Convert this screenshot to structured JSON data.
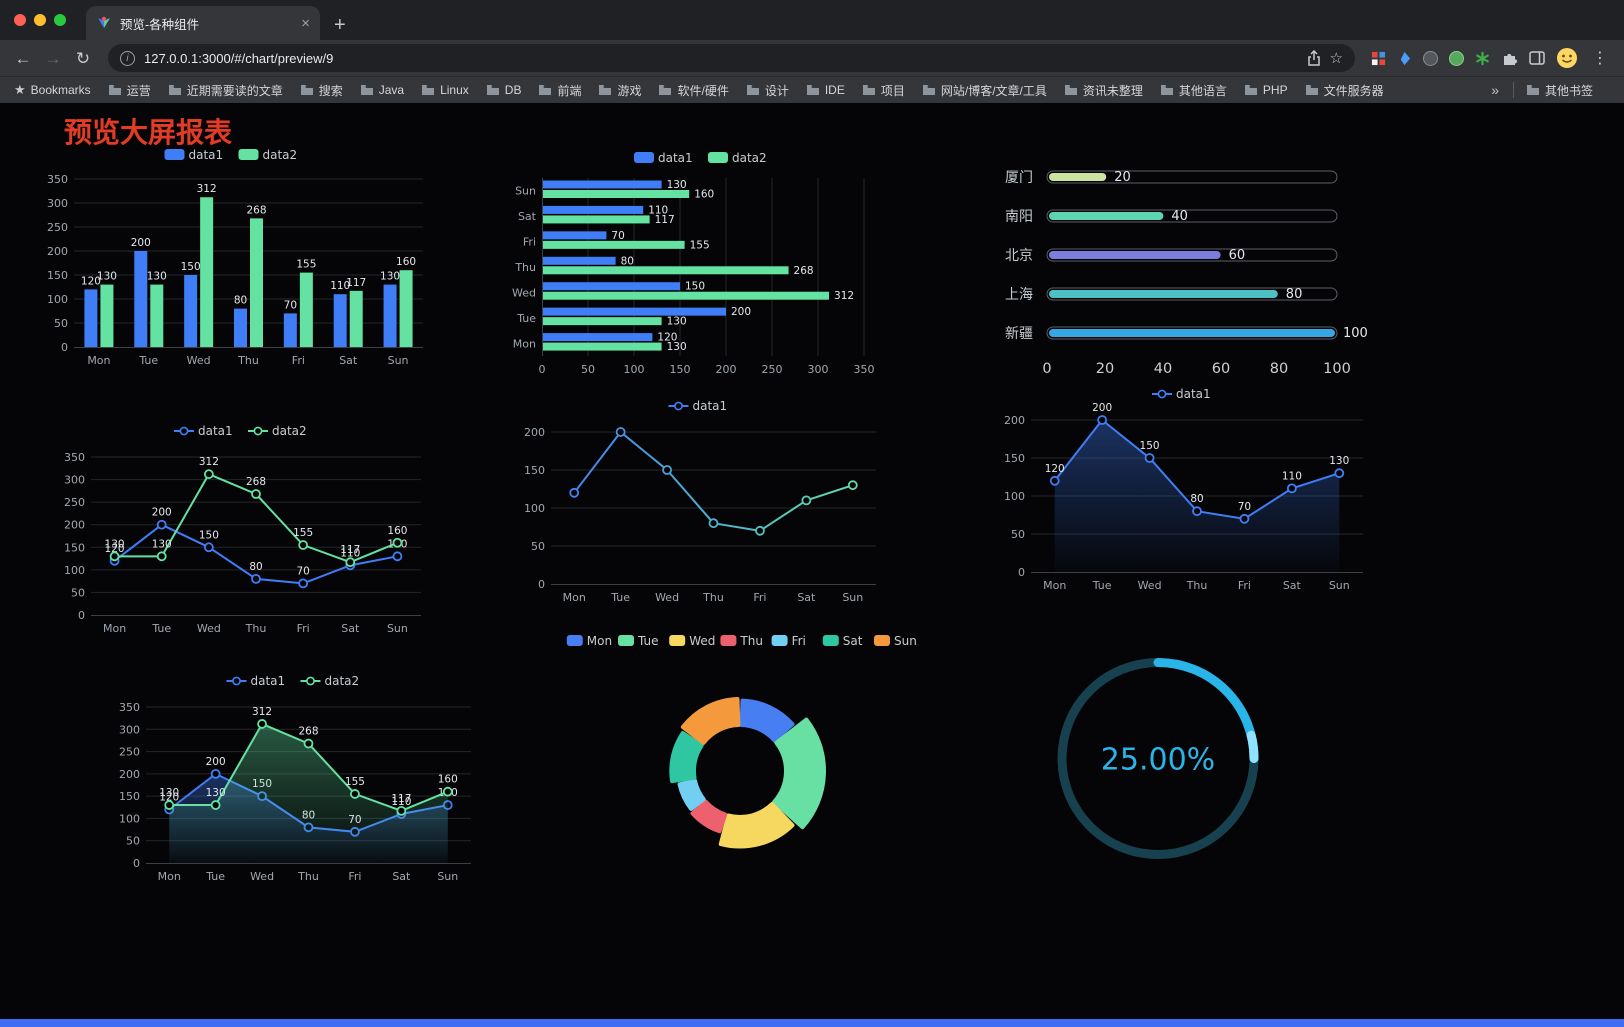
{
  "browser": {
    "tab": {
      "title": "预览-各种组件",
      "close": "×"
    },
    "new_tab": "+",
    "url": "127.0.0.1:3000/#/chart/preview/9",
    "bookmarks_bar": {
      "root_label": "Bookmarks",
      "folders": [
        "运营",
        "近期需要读的文章",
        "搜索",
        "Java",
        "Linux",
        "DB",
        "前端",
        "游戏",
        "软件/硬件",
        "设计",
        "IDE",
        "项目",
        "网站/博客/文章/工具",
        "资讯未整理",
        "其他语言",
        "PHP",
        "文件服务器"
      ],
      "overflow": "»",
      "other": "其他书签"
    }
  },
  "page": {
    "title": "预览大屏报表",
    "title_color": "#e23c26",
    "background": "#050507",
    "bottom_bar_color": "#3f6df4"
  },
  "colors": {
    "data1": "#3f7ef7",
    "data2": "#63e2a2",
    "grid": "#23262b",
    "axis_line": "#3c4147",
    "axis_label": "#a2a8b0",
    "value_label": "#e4e7eb"
  },
  "chart_data": [
    {
      "type": "bar",
      "categories": [
        "Mon",
        "Tue",
        "Wed",
        "Thu",
        "Fri",
        "Sat",
        "Sun"
      ],
      "series": [
        {
          "name": "data1",
          "color": "#3f7ef7",
          "values": [
            120,
            200,
            150,
            80,
            70,
            110,
            130
          ]
        },
        {
          "name": "data2",
          "color": "#63e2a2",
          "values": [
            130,
            130,
            312,
            268,
            155,
            117,
            160
          ]
        }
      ],
      "ylim": [
        0,
        350
      ],
      "yticks": [
        0,
        50,
        100,
        150,
        200,
        250,
        300,
        350
      ],
      "legend_position": "top",
      "grid": true,
      "labels": true
    },
    {
      "type": "hbar",
      "categories": [
        "Sun",
        "Sat",
        "Fri",
        "Thu",
        "Wed",
        "Tue",
        "Mon"
      ],
      "series": [
        {
          "name": "data1",
          "color": "#3f7ef7",
          "values": [
            130,
            110,
            70,
            80,
            150,
            200,
            120
          ]
        },
        {
          "name": "data2",
          "color": "#63e2a2",
          "values": [
            160,
            117,
            155,
            268,
            312,
            130,
            130
          ]
        }
      ],
      "xlim": [
        0,
        350
      ],
      "xticks": [
        0,
        50,
        100,
        150,
        200,
        250,
        300,
        350
      ],
      "legend_position": "top",
      "grid": true,
      "labels": true
    },
    {
      "type": "capsule",
      "items": [
        {
          "label": "厦门",
          "value": 20,
          "color": "#cbe59e"
        },
        {
          "label": "南阳",
          "value": 40,
          "color": "#5bd6ae"
        },
        {
          "label": "北京",
          "value": 60,
          "color": "#7b7edf"
        },
        {
          "label": "上海",
          "value": 80,
          "color": "#4cc2c5"
        },
        {
          "label": "新疆",
          "value": 100,
          "color": "#36a7e2"
        }
      ],
      "max": 100,
      "xticks": [
        0,
        20,
        40,
        60,
        80,
        100
      ]
    },
    {
      "type": "line",
      "categories": [
        "Mon",
        "Tue",
        "Wed",
        "Thu",
        "Fri",
        "Sat",
        "Sun"
      ],
      "series": [
        {
          "name": "data1",
          "color": "#3f7ef7",
          "values": [
            120,
            200,
            150,
            80,
            70,
            110,
            130
          ],
          "labels": true
        },
        {
          "name": "data2",
          "color": "#63e2a2",
          "values": [
            130,
            130,
            312,
            268,
            155,
            117,
            160
          ],
          "labels": true
        }
      ],
      "ylim": [
        0,
        350
      ],
      "yticks": [
        0,
        50,
        100,
        150,
        200,
        250,
        300,
        350
      ],
      "legend_position": "top"
    },
    {
      "type": "line",
      "categories": [
        "Mon",
        "Tue",
        "Wed",
        "Thu",
        "Fri",
        "Sat",
        "Sun"
      ],
      "series": [
        {
          "name": "data1",
          "color": "#3f7ef7",
          "color2": "#63e2a2",
          "gradient": true,
          "values": [
            120,
            200,
            150,
            80,
            70,
            110,
            130
          ],
          "labels": false
        }
      ],
      "ylim": [
        0,
        200
      ],
      "yticks": [
        0,
        50,
        100,
        150,
        200
      ],
      "legend_position": "top"
    },
    {
      "type": "line",
      "categories": [
        "Mon",
        "Tue",
        "Wed",
        "Thu",
        "Fri",
        "Sat",
        "Sun"
      ],
      "series": [
        {
          "name": "data1",
          "color": "#3f7ef7",
          "values": [
            120,
            200,
            150,
            80,
            70,
            110,
            130
          ],
          "labels": true,
          "area": true
        }
      ],
      "ylim": [
        0,
        200
      ],
      "yticks": [
        0,
        50,
        100,
        150,
        200
      ],
      "legend_position": "top"
    },
    {
      "type": "line",
      "categories": [
        "Mon",
        "Tue",
        "Wed",
        "Thu",
        "Fri",
        "Sat",
        "Sun"
      ],
      "series": [
        {
          "name": "data1",
          "color": "#3f7ef7",
          "values": [
            120,
            200,
            150,
            80,
            70,
            110,
            130
          ],
          "labels": true,
          "area": true
        },
        {
          "name": "data2",
          "color": "#63e2a2",
          "values": [
            130,
            130,
            312,
            268,
            155,
            117,
            160
          ],
          "labels": true,
          "area": true
        }
      ],
      "ylim": [
        0,
        350
      ],
      "yticks": [
        0,
        50,
        100,
        150,
        200,
        250,
        300,
        350
      ],
      "legend_position": "top"
    },
    {
      "type": "donut",
      "rose": true,
      "slices": [
        {
          "label": "Mon",
          "value": 120,
          "color": "#477ff2"
        },
        {
          "label": "Tue",
          "value": 200,
          "color": "#68e0a4"
        },
        {
          "label": "Wed",
          "value": 150,
          "color": "#f6d860"
        },
        {
          "label": "Thu",
          "value": 80,
          "color": "#ed616f"
        },
        {
          "label": "Fri",
          "value": 70,
          "color": "#73cff2"
        },
        {
          "label": "Sat",
          "value": 110,
          "color": "#2ec7a2"
        },
        {
          "label": "Sun",
          "value": 130,
          "color": "#f59a3c"
        }
      ],
      "legend_position": "top"
    },
    {
      "type": "gauge",
      "value": 25,
      "label": "25.00%",
      "color": "#29b5e8",
      "cap_color": "#8fe2ff",
      "track_color": "#17414f"
    }
  ]
}
